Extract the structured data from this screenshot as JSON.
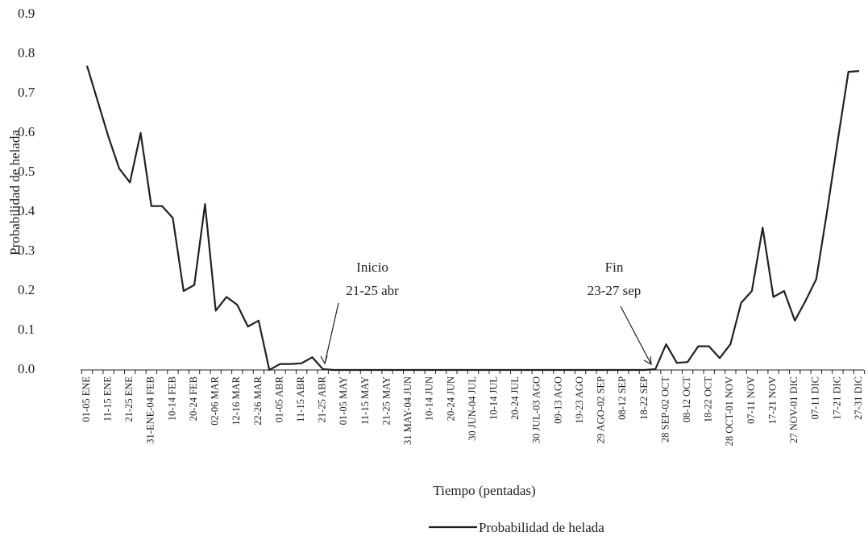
{
  "chart_data": {
    "type": "line",
    "xlabel": "Tiempo (pentadas)",
    "ylabel": "Probabilidad de helada",
    "categories": [
      "01-05 ENE",
      null,
      "11-15 ENE",
      null,
      "21-25 ENE",
      null,
      "31-ENE-04 FEB",
      null,
      "10-14 FEB",
      null,
      "20-24 FEB",
      null,
      "02-06 MAR",
      null,
      "12-16 MAR",
      null,
      "22-26 MAR",
      null,
      "01-05 ABR",
      null,
      "11-15 ABR",
      null,
      "21-25 ABR",
      null,
      "01-05 MAY",
      null,
      "11-15 MAY",
      null,
      "21-25 MAY",
      null,
      "31 MAY-04 JUN",
      null,
      "10-14 JUN",
      null,
      "20-24 JUN",
      null,
      "30 JUN-04 JUL",
      null,
      "10-14 JUL",
      null,
      "20-24 JUL",
      null,
      "30 JUL-03 AGO",
      null,
      "09-13 AGO",
      null,
      "19-23 AGO",
      null,
      "29 AGO-02 SEP",
      null,
      "08-12 SEP",
      null,
      "18-22 SEP",
      null,
      "28 SEP-02 OCT",
      null,
      "08-12 OCT",
      null,
      "18-22 OCT",
      null,
      "28 OCT-01 NOV",
      null,
      "07-11 NOV",
      null,
      "17-21 NOV",
      null,
      "27 NOV-01 DIC",
      null,
      "07-11 DIC",
      null,
      "17-21 DIC",
      null,
      "27-31 DIC"
    ],
    "series": [
      {
        "name": "Probabilidad de helada",
        "color": "#231f20",
        "values": [
          0.77,
          0.68,
          0.59,
          0.51,
          0.475,
          0.6,
          0.415,
          0.415,
          0.385,
          0.2,
          0.215,
          0.42,
          0.15,
          0.185,
          0.165,
          0.11,
          0.125,
          0.0,
          0.015,
          0.015,
          0.017,
          0.032,
          0.002,
          0,
          0,
          0,
          0,
          0,
          0,
          0,
          0,
          0,
          0,
          0,
          0,
          0,
          0,
          0,
          0,
          0,
          0,
          0,
          0,
          0,
          0,
          0,
          0,
          0,
          0,
          0,
          0,
          0,
          0,
          0.002,
          0.065,
          0.018,
          0.02,
          0.06,
          0.06,
          0.03,
          0.065,
          0.17,
          0.2,
          0.36,
          0.185,
          0.2,
          0.125,
          0.175,
          0.23,
          0.4,
          0.58,
          0.755,
          0.757
        ]
      }
    ],
    "ylim": [
      0,
      0.9
    ],
    "yticks": [
      {
        "value": 0,
        "label": "0.0"
      },
      0.1,
      0.2,
      0.3,
      0.4,
      0.5,
      0.6,
      0.7,
      0.8,
      0.9
    ],
    "annotations": [
      [
        "Inicio",
        "21-25 abr"
      ],
      [
        "Fin",
        "23-27 sep"
      ]
    ],
    "legend": "bottom"
  }
}
